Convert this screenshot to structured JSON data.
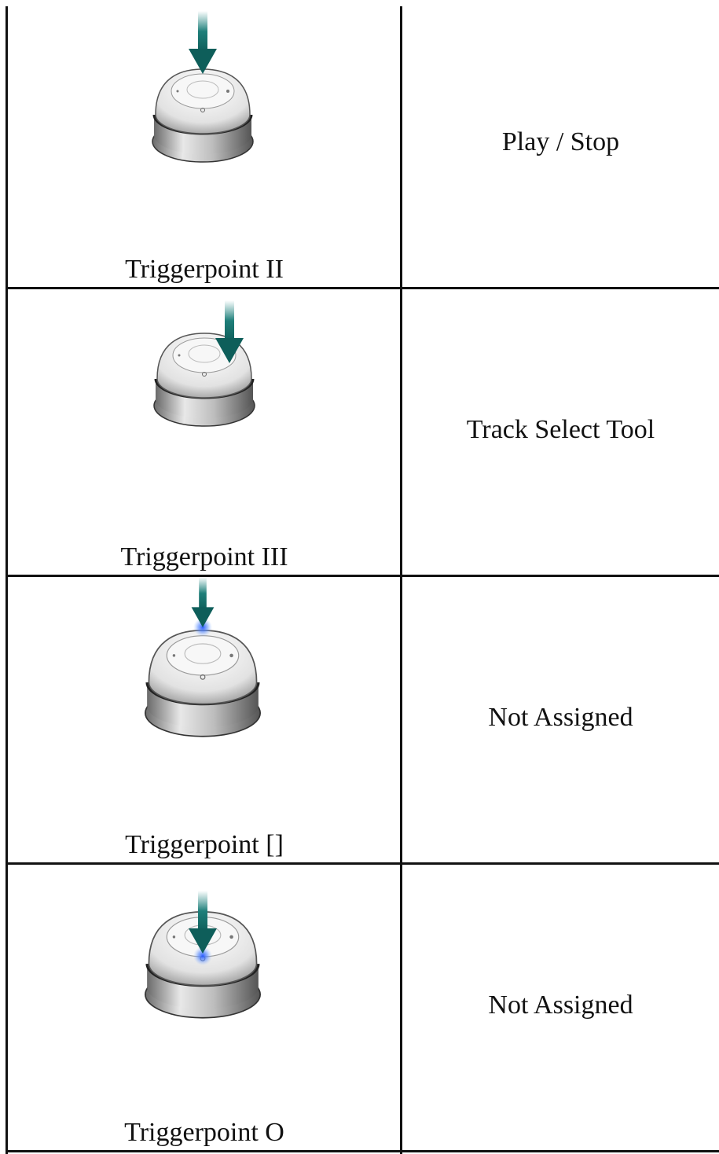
{
  "rows": [
    {
      "control": "Triggerpoint II",
      "action": "Play / Stop"
    },
    {
      "control": "Triggerpoint III",
      "action": "Track Select Tool"
    },
    {
      "control": "Triggerpoint []",
      "action": "Not Assigned"
    },
    {
      "control": "Triggerpoint O",
      "action": "Not Assigned"
    }
  ]
}
